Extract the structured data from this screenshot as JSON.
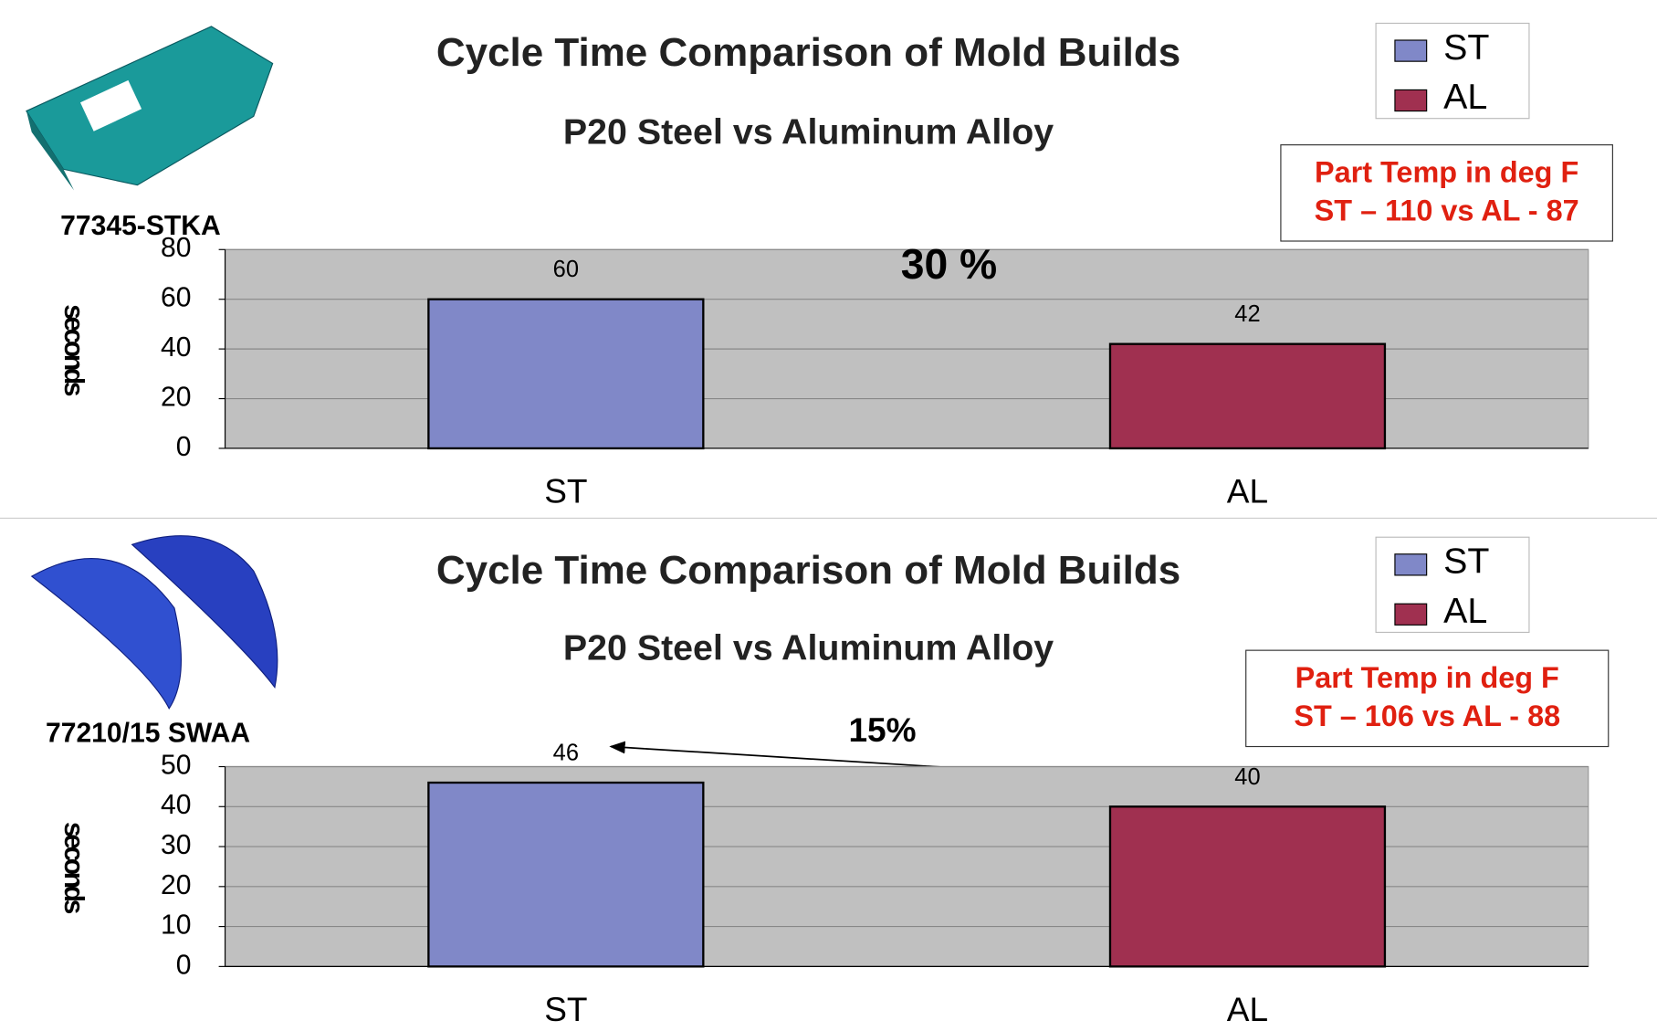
{
  "chart_data": [
    {
      "type": "bar",
      "title": "Cycle Time Comparison of Mold Builds",
      "subtitle": "P20 Steel vs Aluminum Alloy",
      "part_label": "77345-STKA",
      "y_label": "seconds",
      "annotation": "30 %",
      "note_lines": [
        "Part Temp in deg F",
        "ST – 110 vs AL - 87"
      ],
      "categories": [
        "ST",
        "AL"
      ],
      "values": [
        60,
        42
      ],
      "colors": [
        "#8088c8",
        "#a03050"
      ],
      "ylim": [
        0,
        80
      ],
      "yticks": [
        0,
        20,
        40,
        60,
        80
      ],
      "grid": true
    },
    {
      "type": "bar",
      "title": "Cycle Time Comparison of Mold Builds",
      "subtitle": "P20 Steel vs Aluminum Alloy",
      "part_label": "77210/15 SWAA",
      "y_label": "seconds",
      "annotation": "15%",
      "note_lines": [
        "Part Temp in deg F",
        "ST – 106 vs AL - 88"
      ],
      "categories": [
        "ST",
        "AL"
      ],
      "values": [
        46,
        40
      ],
      "colors": [
        "#8088c8",
        "#a03050"
      ],
      "ylim": [
        0,
        50
      ],
      "yticks": [
        0,
        10,
        20,
        30,
        40,
        50
      ],
      "grid": true
    }
  ]
}
